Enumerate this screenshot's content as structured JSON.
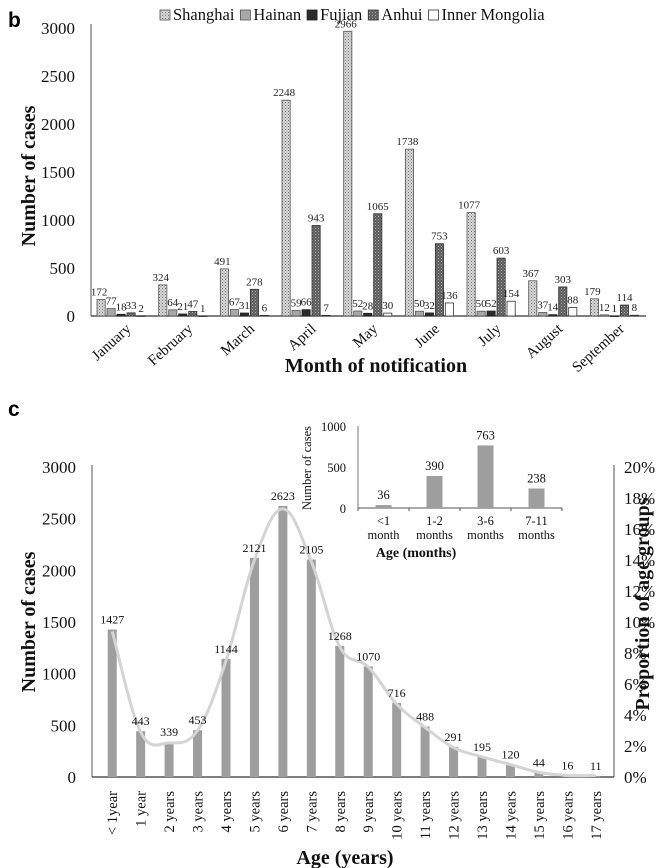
{
  "chart_data": [
    {
      "panel": "b",
      "type": "bar",
      "title": "",
      "xlabel": "Month of notification",
      "ylabel": "Number of cases",
      "ylim": [
        0,
        3000
      ],
      "yticks": [
        "0",
        "500",
        "1000",
        "1500",
        "2000",
        "2500",
        "3000"
      ],
      "ytick_values": [
        0,
        500,
        1000,
        1500,
        2000,
        2500,
        3000
      ],
      "legend_position": "top-center",
      "categories": [
        "January",
        "February",
        "March",
        "April",
        "May",
        "June",
        "July",
        "August",
        "September"
      ],
      "series": [
        {
          "name": "Shanghai",
          "pattern": "dotted-light",
          "color": "#c8c8c8",
          "values": [
            172,
            324,
            491,
            2248,
            2966,
            1738,
            1077,
            367,
            179
          ]
        },
        {
          "name": "Hainan",
          "pattern": "solid-gray",
          "color": "#a8a8a8",
          "values": [
            77,
            64,
            67,
            59,
            52,
            50,
            50,
            37,
            12
          ]
        },
        {
          "name": "Fujian",
          "pattern": "solid-dark",
          "color": "#2b2b2b",
          "values": [
            18,
            21,
            31,
            66,
            28,
            32,
            52,
            14,
            1
          ]
        },
        {
          "name": "Anhui",
          "pattern": "dotted-dark",
          "color": "#6a6a6a",
          "values": [
            33,
            47,
            278,
            943,
            1065,
            753,
            603,
            303,
            114
          ]
        },
        {
          "name": "Inner Mongolia",
          "pattern": "hollow",
          "color": "#ffffff",
          "values": [
            2,
            1,
            6,
            7,
            30,
            136,
            154,
            88,
            8
          ]
        }
      ],
      "data_labels": [
        [
          "172",
          "77",
          "18",
          "33",
          "2"
        ],
        [
          "324",
          "64",
          "21",
          "47",
          "1"
        ],
        [
          "491",
          "67",
          "31",
          "278",
          "6"
        ],
        [
          "2248",
          "59",
          "66",
          "943",
          "7"
        ],
        [
          "2966",
          "52",
          "28",
          "1065",
          "30"
        ],
        [
          "1738",
          "50",
          "32",
          "753",
          "136"
        ],
        [
          "1077",
          "50",
          "52",
          "603",
          "154"
        ],
        [
          "367",
          "37",
          "14",
          "303",
          "88"
        ],
        [
          "179",
          "12",
          "1",
          "114",
          "8"
        ]
      ]
    },
    {
      "panel": "c",
      "type": "bar",
      "title": "",
      "xlabel": "Age (years)",
      "ylabel": "Number of cases",
      "y2label": "Proportion of age groups",
      "ylim": [
        0,
        3000
      ],
      "y2lim": [
        0,
        20
      ],
      "yticks": [
        "0",
        "500",
        "1000",
        "1500",
        "2000",
        "2500",
        "3000"
      ],
      "ytick_values": [
        0,
        500,
        1000,
        1500,
        2000,
        2500,
        3000
      ],
      "y2ticks": [
        "0%",
        "2%",
        "4%",
        "6%",
        "8%",
        "10%",
        "12%",
        "14%",
        "16%",
        "18%",
        "20%"
      ],
      "categories": [
        "< 1year",
        "1 year",
        "2 years",
        "3 years",
        "4 years",
        "5 years",
        "6 years",
        "7 years",
        "8 years",
        "9 years",
        "10 years",
        "11 years",
        "12 years",
        "13 years",
        "14 years",
        "15 years",
        "16 years",
        "17 years"
      ],
      "series": [
        {
          "name": "Number of cases",
          "type": "bar",
          "color": "#9e9e9e",
          "values": [
            1427,
            443,
            339,
            453,
            1144,
            2121,
            2623,
            2105,
            1268,
            1070,
            716,
            488,
            291,
            195,
            120,
            44,
            16,
            11
          ]
        },
        {
          "name": "Proportion of age groups",
          "type": "line",
          "color": "#d4d4d4",
          "axis": "right",
          "unit": "%",
          "values": [
            9.4,
            2.9,
            2.2,
            3.0,
            7.5,
            14.0,
            17.3,
            13.9,
            8.4,
            7.1,
            4.7,
            3.2,
            1.9,
            1.3,
            0.8,
            0.3,
            0.1,
            0.1
          ]
        }
      ],
      "inset": {
        "type": "bar",
        "xlabel": "Age (months)",
        "ylabel": "Number of cases",
        "ylim": [
          0,
          1000
        ],
        "yticks": [
          "0",
          "500",
          "1000"
        ],
        "ytick_values": [
          0,
          500,
          1000
        ],
        "categories": [
          [
            "<1",
            "month"
          ],
          [
            "1-2",
            "months"
          ],
          [
            "3-6",
            "months"
          ],
          [
            "7-11",
            "months"
          ]
        ],
        "values": [
          36,
          390,
          763,
          238
        ],
        "color": "#9e9e9e"
      }
    }
  ],
  "panel_labels": {
    "b": "b",
    "c": "c"
  }
}
